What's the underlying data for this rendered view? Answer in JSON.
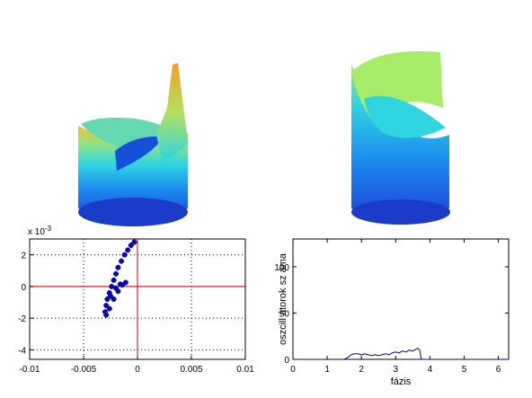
{
  "colors": {
    "surface_top": "#f2c230",
    "surface_mid": "#2fd6e0",
    "surface_base": "#1b3fd8",
    "scatter_marker": "#0a0aa8",
    "crosshair": "#cc0000",
    "curve": "#000080"
  },
  "chart_data": [
    {
      "type": "surface3d",
      "description_panel": "top-left cylinder surface"
    },
    {
      "type": "surface3d",
      "description_panel": "top-right cylinder surface"
    },
    {
      "type": "scatter",
      "xlim": [
        -0.01,
        0.01
      ],
      "ylim": [
        -4.6,
        3.0
      ],
      "y_multiplier": "x 10",
      "y_multiplier_exp": "-3",
      "xticks": [
        "-0.01",
        "-0.005",
        "0",
        "0.005",
        "0.01"
      ],
      "xtick_values": [
        -0.01,
        -0.005,
        0,
        0.005,
        0.01
      ],
      "yticks": [
        "2",
        "0",
        "-2",
        "-4"
      ],
      "ytick_values": [
        2,
        0,
        -2,
        -4
      ],
      "grid": true,
      "crosshair": [
        0,
        0
      ],
      "points": [
        [
          -0.0003,
          2.8
        ],
        [
          -0.0006,
          2.6
        ],
        [
          -0.0009,
          2.3
        ],
        [
          -0.0012,
          2.0
        ],
        [
          -0.0015,
          1.6
        ],
        [
          -0.0018,
          1.2
        ],
        [
          -0.002,
          0.8
        ],
        [
          -0.0022,
          0.4
        ],
        [
          -0.0024,
          0.0
        ],
        [
          -0.0026,
          -0.4
        ],
        [
          -0.0028,
          -0.8
        ],
        [
          -0.0029,
          -1.2
        ],
        [
          -0.003,
          -1.6
        ],
        [
          -0.0029,
          -1.8
        ],
        [
          -0.0026,
          -1.4
        ],
        [
          -0.0022,
          -0.8
        ],
        [
          -0.0018,
          -0.3
        ],
        [
          -0.0014,
          0.1
        ],
        [
          -0.0011,
          0.25
        ],
        [
          -0.0025,
          -0.6
        ],
        [
          -0.002,
          -0.1
        ],
        [
          -0.0016,
          0.15
        ]
      ]
    },
    {
      "type": "line",
      "xlabel": "fázis",
      "ylabel": "oszcill átorok sz áma",
      "xlim": [
        0,
        6.3
      ],
      "ylim": [
        0,
        130
      ],
      "xticks": [
        "0",
        "1",
        "2",
        "3",
        "4",
        "5",
        "6"
      ],
      "xtick_values": [
        0,
        1,
        2,
        3,
        4,
        5,
        6
      ],
      "yticks": [
        "0",
        "50",
        "100"
      ],
      "ytick_values": [
        0,
        50,
        100
      ],
      "x": [
        0,
        1.5,
        1.6,
        1.7,
        1.8,
        1.9,
        2.0,
        2.1,
        2.2,
        2.3,
        2.4,
        2.5,
        2.6,
        2.7,
        2.8,
        2.9,
        3.0,
        3.1,
        3.2,
        3.3,
        3.4,
        3.5,
        3.6,
        3.65,
        3.7,
        3.75,
        6.3
      ],
      "values": [
        0,
        0,
        2,
        5,
        6,
        6,
        5,
        6,
        5,
        4,
        5,
        4,
        5,
        6,
        5,
        7,
        8,
        7,
        9,
        8,
        10,
        9,
        11,
        12,
        10,
        0,
        0
      ]
    }
  ]
}
